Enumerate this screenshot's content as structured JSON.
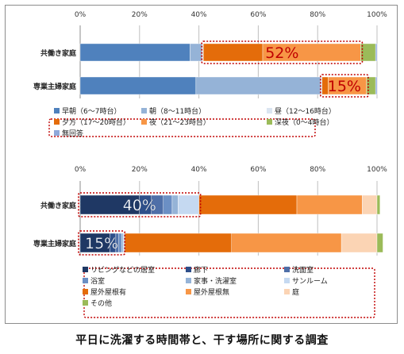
{
  "caption": "平日に洗濯する時間帯と、干す場所に関する調査",
  "colors": {
    "highlight_box": "#c00000",
    "callout_text": "#c00000"
  },
  "chart_data": [
    {
      "type": "bar",
      "stacked": true,
      "orientation": "horizontal",
      "xlim": [
        0,
        100
      ],
      "x_ticks": [
        "0%",
        "20%",
        "40%",
        "60%",
        "80%",
        "100%"
      ],
      "grid": true,
      "categories": [
        "共働き家庭",
        "専業主婦家庭"
      ],
      "series": [
        {
          "name": "早朝（6～7時台）",
          "color": "#4f81bd",
          "values": [
            37,
            39
          ]
        },
        {
          "name": "朝（8～11時台）",
          "color": "#95b3d7",
          "values": [
            4,
            42
          ]
        },
        {
          "name": "昼（12～16時台）",
          "color": "#dbe5f1",
          "values": [
            0.5,
            0.5
          ]
        },
        {
          "name": "夕方（17～20時台）",
          "color": "#e46c0a",
          "values": [
            20,
            2
          ]
        },
        {
          "name": "夜（21～23時台）",
          "color": "#f79646",
          "values": [
            33,
            13
          ]
        },
        {
          "name": "深夜（0～4時台）",
          "color": "#9bbb59",
          "values": [
            5,
            3
          ]
        },
        {
          "name": "無回答",
          "color": "#8ea9db",
          "values": [
            0.5,
            0.5
          ]
        }
      ],
      "callouts": [
        {
          "text": "52%",
          "category": "共働き家庭"
        },
        {
          "text": "15%",
          "category": "専業主婦家庭"
        }
      ],
      "legend_placement": "bottom"
    },
    {
      "type": "bar",
      "stacked": true,
      "orientation": "horizontal",
      "xlim": [
        0,
        100
      ],
      "x_ticks": [
        "0%",
        "20%",
        "40%",
        "60%",
        "80%",
        "100%"
      ],
      "grid": true,
      "categories": [
        "共働き家庭",
        "専業主婦家庭"
      ],
      "series": [
        {
          "name": "リビングなどの居室",
          "color": "#1f3864",
          "values": [
            20,
            10
          ]
        },
        {
          "name": "廊下",
          "color": "#2e4f8a",
          "values": [
            4,
            2
          ]
        },
        {
          "name": "洗面室",
          "color": "#4f6fa8",
          "values": [
            4,
            1
          ]
        },
        {
          "name": "浴室",
          "color": "#6b8fc4",
          "values": [
            3,
            1
          ]
        },
        {
          "name": "家事・洗濯室",
          "color": "#95b3d7",
          "values": [
            2,
            0.5
          ]
        },
        {
          "name": "サンルーム",
          "color": "#c5d9f1",
          "values": [
            7,
            0.5
          ]
        },
        {
          "name": "屋外屋根有",
          "color": "#e46c0a",
          "values": [
            33,
            36
          ]
        },
        {
          "name": "屋外屋根無",
          "color": "#f79646",
          "values": [
            22,
            37
          ]
        },
        {
          "name": "庭",
          "color": "#fbd4b4",
          "values": [
            5,
            12
          ]
        },
        {
          "name": "その他",
          "color": "#9bbb59",
          "values": [
            1,
            2
          ]
        }
      ],
      "callouts": [
        {
          "text": "40%",
          "category": "共働き家庭"
        },
        {
          "text": "15%",
          "category": "専業主婦家庭"
        }
      ],
      "legend_placement": "bottom"
    }
  ]
}
